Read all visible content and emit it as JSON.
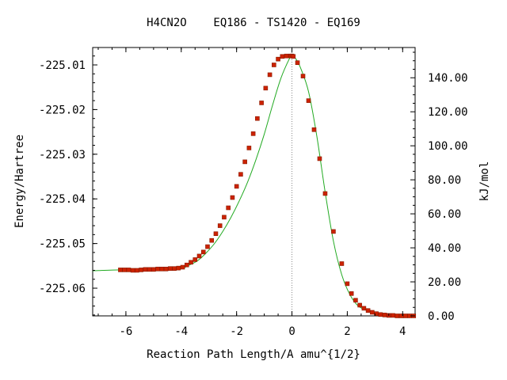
{
  "chart_data": {
    "type": "line",
    "title": "H4CN2O    EQ186 - TS1420 - EQ169",
    "xlabel": "Reaction Path Length/A amu^{1/2}",
    "ylabel": "Energy/Hartree",
    "y2label": "kJ/mol",
    "xlim": [
      -7.2,
      4.45
    ],
    "ylim": [
      -225.0662,
      -225.0061
    ],
    "x_ticks": [
      -6,
      -4,
      -2,
      0,
      2,
      4
    ],
    "x_tick_labels": [
      "-6",
      "-4",
      "-2",
      "0",
      "2",
      "4"
    ],
    "y_ticks": [
      -225.01,
      -225.02,
      -225.03,
      -225.04,
      -225.05,
      -225.06
    ],
    "y_tick_labels": [
      "-225.01",
      "-225.02",
      "-225.03",
      "-225.04",
      "-225.05",
      "-225.06"
    ],
    "y2_ticks": [
      0,
      20,
      40,
      60,
      80,
      100,
      120,
      140
    ],
    "y2_tick_labels": [
      "0.00",
      "20.00",
      "40.00",
      "60.00",
      "80.00",
      "100.00",
      "120.00",
      "140.00"
    ],
    "y2_zero_hartree": -225.0662,
    "kj_per_hartree": 2625.5,
    "ts_x": 0,
    "grid": false,
    "colors": {
      "line": "#22aa22",
      "marker": "#cc2200",
      "ts_line": "#888888",
      "axis": "#000000"
    },
    "line_curve": {
      "x": [
        -7.2,
        -6.2,
        -5.6,
        -5.0,
        -4.5,
        -4.0,
        -3.7,
        -3.4,
        -3.1,
        -2.8,
        -2.5,
        -2.2,
        -1.9,
        -1.6,
        -1.3,
        -1.0,
        -0.7,
        -0.4,
        -0.1,
        0.0,
        0.1,
        0.3,
        0.6,
        0.9,
        1.2,
        1.5,
        1.8,
        2.1,
        2.4,
        2.8,
        3.2,
        3.6,
        4.0,
        4.45
      ],
      "y": [
        -225.0561,
        -225.0559,
        -225.056,
        -225.0558,
        -225.0557,
        -225.0556,
        -225.0548,
        -225.0538,
        -225.0521,
        -225.05,
        -225.0473,
        -225.0441,
        -225.0404,
        -225.0362,
        -225.0312,
        -225.0255,
        -225.019,
        -225.013,
        -225.0087,
        -225.008,
        -225.0083,
        -225.0105,
        -225.016,
        -225.026,
        -225.0385,
        -225.0495,
        -225.057,
        -225.0615,
        -225.064,
        -225.0652,
        -225.0659,
        -225.0661,
        -225.0662,
        -225.0662
      ]
    },
    "markers": {
      "x": [
        -6.2,
        -6.05,
        -5.9,
        -5.75,
        -5.6,
        -5.45,
        -5.3,
        -5.15,
        -5.0,
        -4.85,
        -4.7,
        -4.55,
        -4.4,
        -4.25,
        -4.1,
        -3.95,
        -3.8,
        -3.65,
        -3.5,
        -3.35,
        -3.2,
        -3.05,
        -2.9,
        -2.75,
        -2.6,
        -2.45,
        -2.3,
        -2.15,
        -2.0,
        -1.85,
        -1.7,
        -1.55,
        -1.4,
        -1.25,
        -1.1,
        -0.95,
        -0.8,
        -0.65,
        -0.5,
        -0.35,
        -0.2,
        -0.05,
        0.0,
        0.05,
        0.2,
        0.4,
        0.6,
        0.8,
        1.0,
        1.2,
        1.5,
        1.8,
        2.0,
        2.15,
        2.3,
        2.45,
        2.6,
        2.75,
        2.9,
        3.05,
        3.2,
        3.35,
        3.5,
        3.65,
        3.8,
        3.95,
        4.1,
        4.25,
        4.4
      ],
      "y": [
        -225.0559,
        -225.0559,
        -225.0559,
        -225.056,
        -225.056,
        -225.0559,
        -225.0558,
        -225.0558,
        -225.0558,
        -225.0557,
        -225.0557,
        -225.0557,
        -225.0556,
        -225.0556,
        -225.0555,
        -225.0553,
        -225.0548,
        -225.0542,
        -225.0536,
        -225.0528,
        -225.0519,
        -225.0507,
        -225.0493,
        -225.0478,
        -225.046,
        -225.0441,
        -225.042,
        -225.0397,
        -225.0372,
        -225.0345,
        -225.0317,
        -225.0286,
        -225.0254,
        -225.022,
        -225.0185,
        -225.0152,
        -225.0122,
        -225.01,
        -225.0087,
        -225.0081,
        -225.008,
        -225.008,
        -225.008,
        -225.0081,
        -225.0095,
        -225.0125,
        -225.018,
        -225.0245,
        -225.031,
        -225.0388,
        -225.0473,
        -225.0545,
        -225.059,
        -225.0612,
        -225.0627,
        -225.0638,
        -225.0645,
        -225.065,
        -225.0654,
        -225.0657,
        -225.0659,
        -225.066,
        -225.0661,
        -225.0661,
        -225.0662,
        -225.0662,
        -225.0662,
        -225.0662,
        -225.0662
      ]
    }
  }
}
